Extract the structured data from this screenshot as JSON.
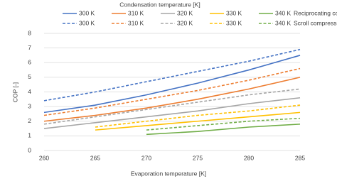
{
  "chart_data": {
    "type": "line",
    "title": "Condensation temperature [K]",
    "xlabel": "Evaporation temperature [K]",
    "ylabel": "COP [-]",
    "x": [
      260,
      265,
      270,
      275,
      280,
      285
    ],
    "xlim": [
      260,
      285
    ],
    "xticks": [
      260,
      265,
      270,
      275,
      280,
      285
    ],
    "ylim": [
      0,
      8
    ],
    "yticks": [
      0,
      1,
      2,
      3,
      4,
      5,
      6,
      7,
      8
    ],
    "grid": true,
    "groups": [
      {
        "name": "Reciprocating compressor",
        "dashed": false,
        "series": [
          {
            "name": "300 K",
            "color": "#4472c4",
            "values": [
              2.6,
              3.1,
              3.8,
              4.6,
              5.5,
              6.5
            ]
          },
          {
            "name": "310 K",
            "color": "#ed7d31",
            "values": [
              2.0,
              2.4,
              2.9,
              3.5,
              4.2,
              5.0
            ]
          },
          {
            "name": "320 K",
            "color": "#a5a5a5",
            "values": [
              1.5,
              1.9,
              2.3,
              2.7,
              3.2,
              3.6
            ]
          },
          {
            "name": "330 K",
            "color": "#ffc000",
            "values": [
              null,
              1.4,
              1.7,
              2.0,
              2.3,
              2.6
            ]
          },
          {
            "name": "340 K",
            "color": "#70ad47",
            "values": [
              null,
              null,
              1.1,
              1.3,
              1.6,
              1.8
            ]
          }
        ]
      },
      {
        "name": "Scroll compressor",
        "dashed": true,
        "series": [
          {
            "name": "300 K",
            "color": "#4472c4",
            "values": [
              3.4,
              4.0,
              4.7,
              5.4,
              6.1,
              6.9
            ]
          },
          {
            "name": "310 K",
            "color": "#ed7d31",
            "values": [
              2.4,
              2.9,
              3.5,
              4.1,
              4.8,
              5.6
            ]
          },
          {
            "name": "320 K",
            "color": "#a5a5a5",
            "values": [
              1.8,
              2.3,
              2.8,
              3.3,
              3.8,
              4.2
            ]
          },
          {
            "name": "330 K",
            "color": "#ffc000",
            "values": [
              null,
              1.6,
              2.0,
              2.4,
              2.7,
              3.1
            ]
          },
          {
            "name": "340 K",
            "color": "#70ad47",
            "values": [
              null,
              null,
              1.4,
              1.7,
              2.0,
              2.2
            ]
          }
        ]
      }
    ]
  }
}
